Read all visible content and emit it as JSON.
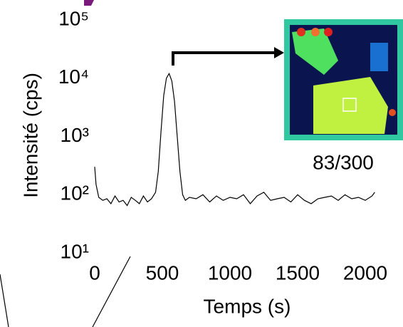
{
  "chart_data": {
    "type": "line",
    "xlabel": "Temps (s)",
    "ylabel": "Intensité (cps)",
    "inset_label": "83/300",
    "log_y": true,
    "xlim": [
      0,
      2200
    ],
    "xticks": [
      0,
      500,
      1000,
      1500,
      2000
    ],
    "ylim": [
      10,
      100000
    ],
    "yticks": [
      {
        "value": 10,
        "label": "10¹"
      },
      {
        "value": 100,
        "label": "10²"
      },
      {
        "value": 1000,
        "label": "10³"
      },
      {
        "value": 10000,
        "label": "10⁴"
      },
      {
        "value": 100000,
        "label": "10⁵"
      }
    ],
    "x": [
      0,
      10,
      30,
      60,
      90,
      120,
      150,
      180,
      210,
      240,
      270,
      300,
      330,
      360,
      390,
      420,
      450,
      470,
      490,
      510,
      530,
      550,
      570,
      590,
      610,
      630,
      650,
      670,
      700,
      750,
      800,
      850,
      900,
      950,
      1000,
      1050,
      1100,
      1150,
      1200,
      1250,
      1300,
      1350,
      1400,
      1450,
      1500,
      1550,
      1600,
      1650,
      1700,
      1750,
      1800,
      1850,
      1900,
      1950,
      2000,
      2050,
      2070
    ],
    "series": [
      {
        "color": "#000000",
        "values": [
          300,
          150,
          90,
          80,
          85,
          70,
          95,
          75,
          80,
          65,
          90,
          80,
          70,
          95,
          75,
          85,
          110,
          250,
          1200,
          5000,
          10000,
          12000,
          9000,
          4000,
          1000,
          250,
          100,
          80,
          90,
          85,
          100,
          75,
          95,
          80,
          90,
          85,
          100,
          70,
          95,
          110,
          80,
          85,
          90,
          75,
          100,
          80,
          70,
          85,
          90,
          95,
          80,
          100,
          85,
          90,
          80,
          95,
          110
        ]
      }
    ]
  }
}
